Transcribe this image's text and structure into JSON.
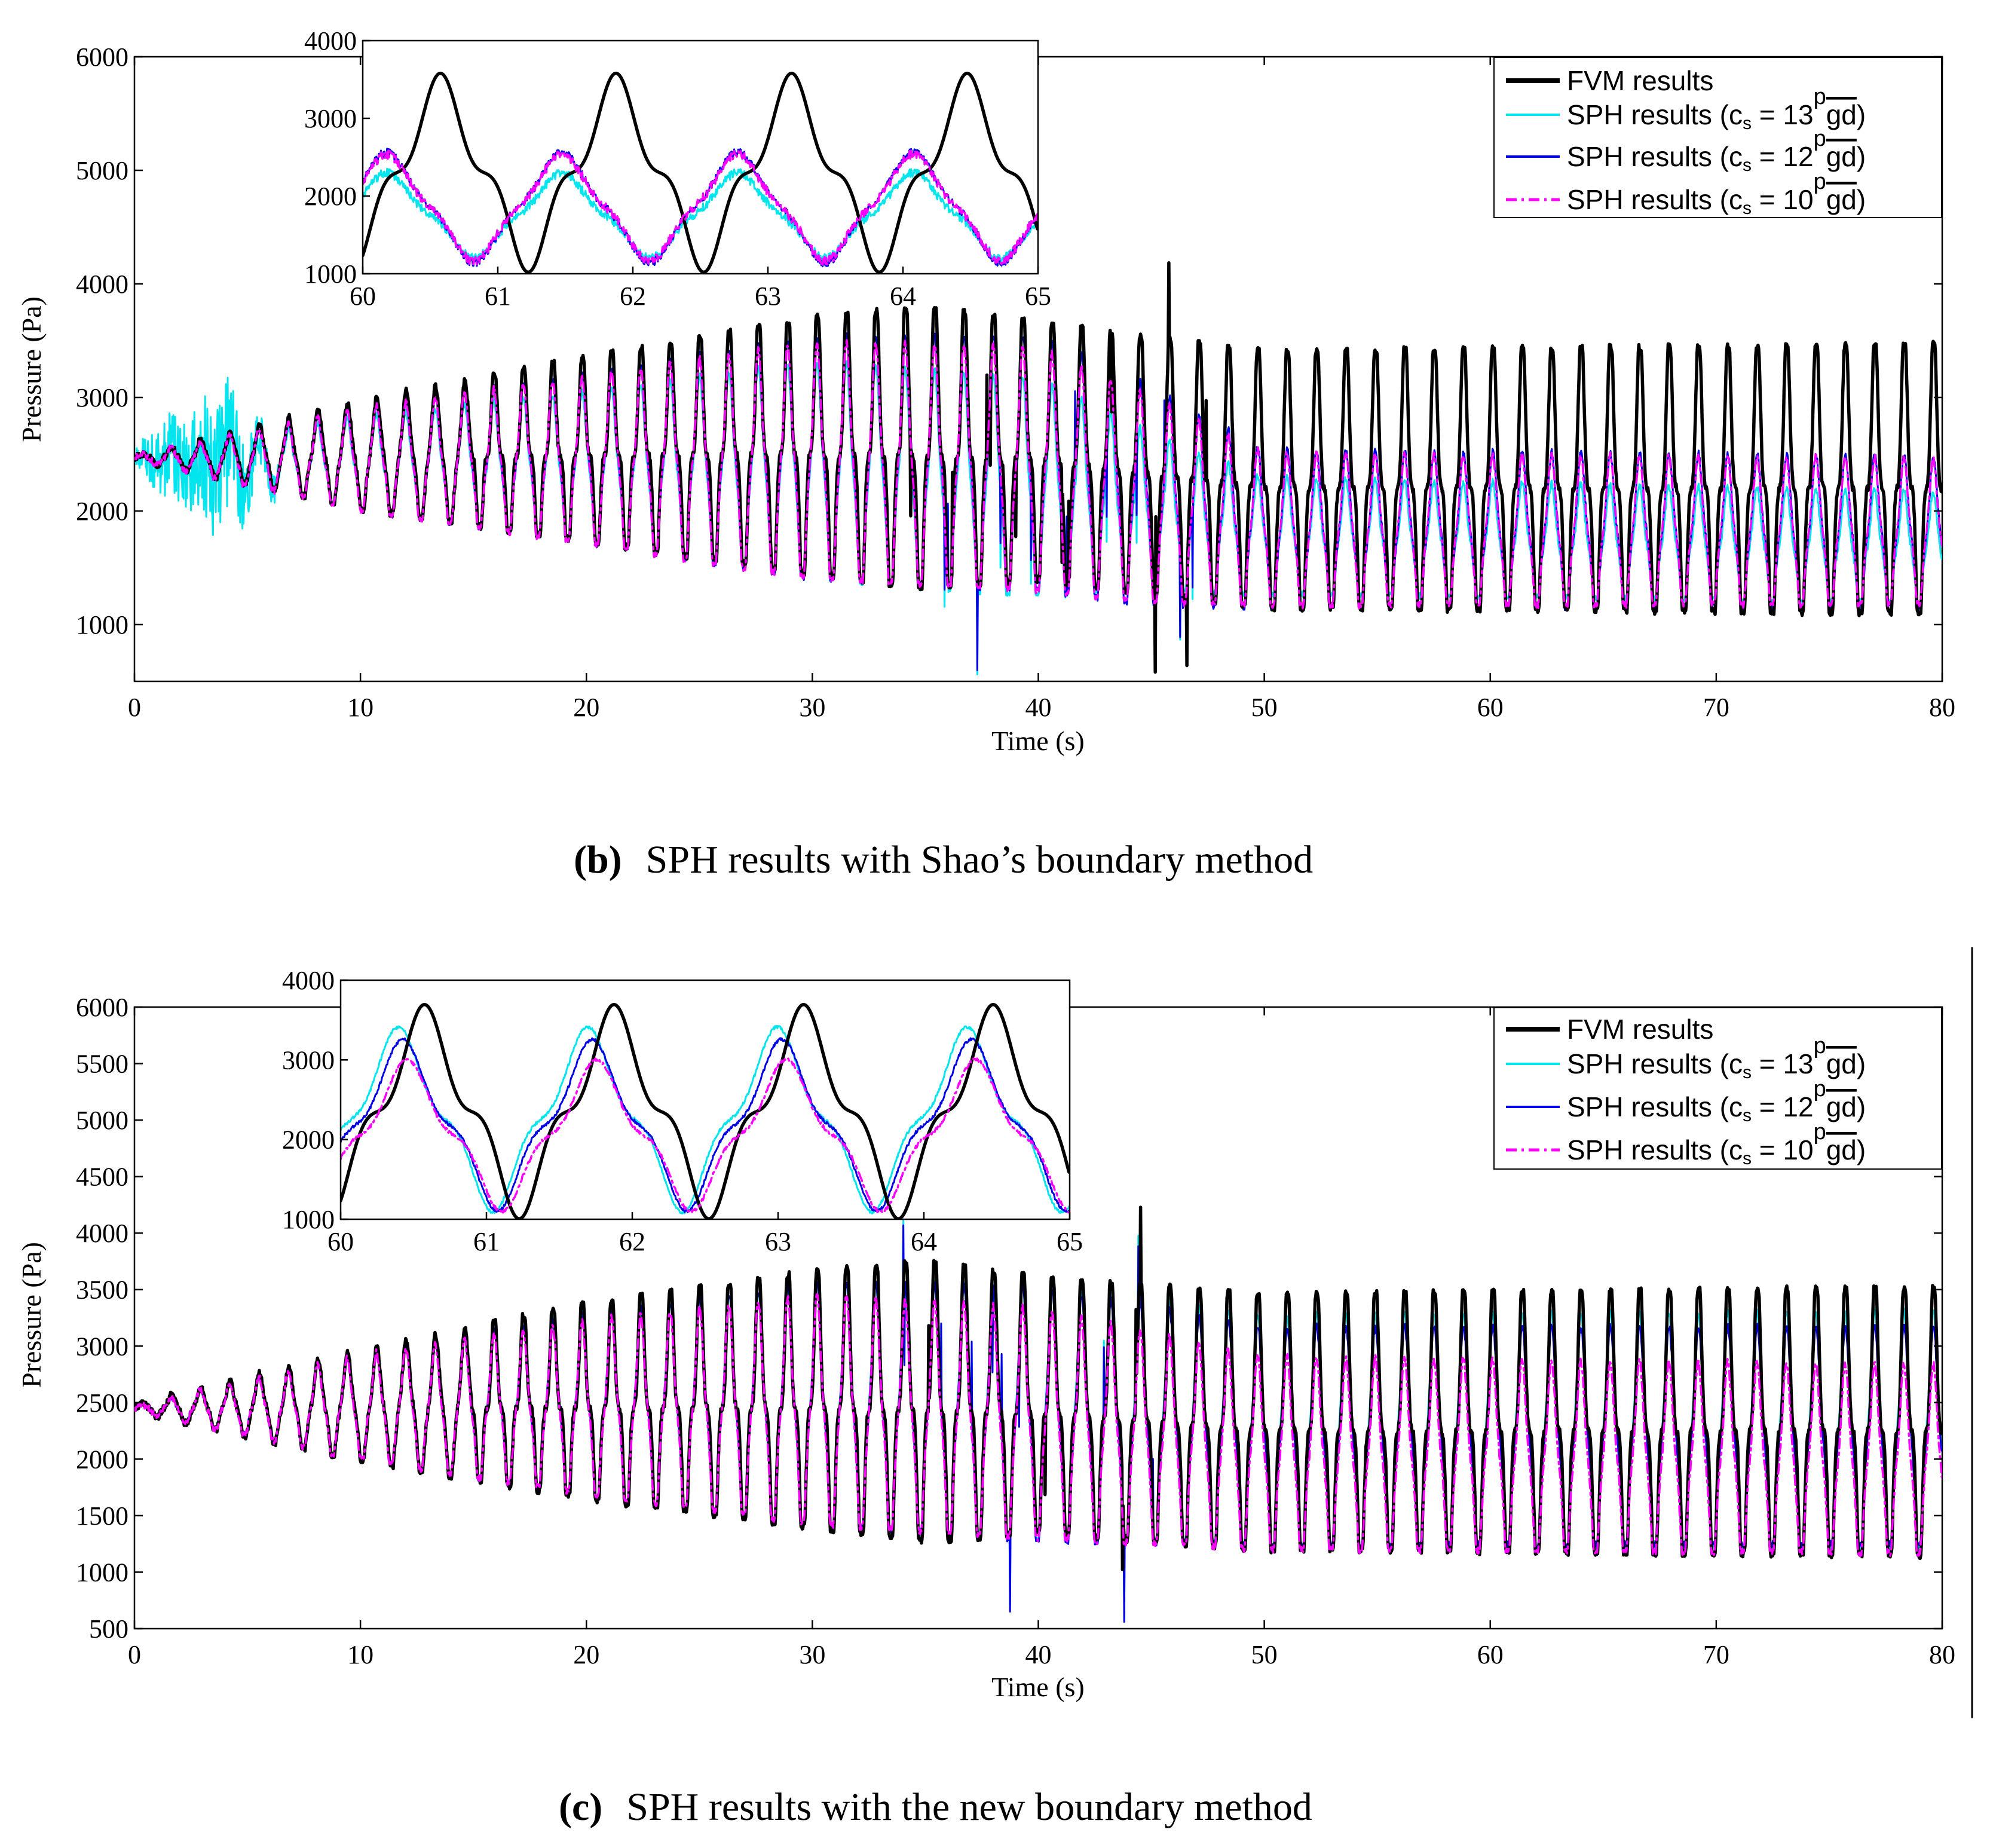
{
  "colors": {
    "fvm": "#000000",
    "sph13": "#00e5ee",
    "sph12": "#0000e6",
    "sph10": "#ff00ff"
  },
  "legend": {
    "fvm": "FVM results",
    "sph_prefix": "SPH results (c",
    "sph_sub": "s",
    "eq": " = ",
    "c13": "13",
    "c12": "12",
    "c10": "10",
    "sqrt_p": "p",
    "gd": "gd",
    "close": ")"
  },
  "captions": {
    "b_label": "(b)",
    "b_text": "SPH results with Shao’s boundary method",
    "c_label": "(c)",
    "c_text": "SPH results with the new boundary method"
  },
  "chart_data": [
    {
      "id": "panel-b",
      "type": "line",
      "xlabel": "Time (s)",
      "ylabel": "Pressure (Pa)",
      "xlim": [
        0,
        80
      ],
      "ylim": [
        500,
        6000
      ],
      "xticks": [
        "0",
        "10",
        "20",
        "30",
        "40",
        "50",
        "60",
        "70",
        "80"
      ],
      "yticks": [
        "1000",
        "2000",
        "3000",
        "4000",
        "5000",
        "6000"
      ],
      "ytick_values": [
        1000,
        2000,
        3000,
        4000,
        5000,
        6000
      ],
      "legend_position": "top-right",
      "series": [
        {
          "name": "FVM results",
          "key": "fvm",
          "mean": [
            [
              0,
              2470
            ],
            [
              10,
              2470
            ],
            [
              30,
              2500
            ],
            [
              40,
              2450
            ],
            [
              50,
              2200
            ],
            [
              80,
              2200
            ]
          ],
          "amp": [
            [
              0,
              20
            ],
            [
              2,
              100
            ],
            [
              10,
              450
            ],
            [
              20,
              750
            ],
            [
              30,
              1050
            ],
            [
              35,
              1150
            ],
            [
              40,
              1050
            ],
            [
              45,
              1050
            ],
            [
              50,
              1050
            ],
            [
              80,
              1100
            ]
          ]
        },
        {
          "name": "SPH results (c_s = 13√gd)",
          "key": "sph13",
          "mean": [
            [
              0,
              2470
            ],
            [
              10,
              2400
            ],
            [
              30,
              2300
            ],
            [
              40,
              2150
            ],
            [
              50,
              1750
            ],
            [
              80,
              1650
            ]
          ],
          "amp": [
            [
              0,
              20
            ],
            [
              2,
              100
            ],
            [
              10,
              380
            ],
            [
              20,
              620
            ],
            [
              30,
              900
            ],
            [
              40,
              900
            ],
            [
              45,
              650
            ],
            [
              50,
              480
            ],
            [
              80,
              460
            ]
          ],
          "noise": [
            [
              0,
              150
            ],
            [
              1,
              600
            ],
            [
              3,
              1100
            ],
            [
              4,
              1200
            ],
            [
              6,
              300
            ],
            [
              7,
              60
            ],
            [
              80,
              60
            ]
          ]
        },
        {
          "name": "SPH results (c_s = 12√gd)",
          "key": "sph12",
          "mean": [
            [
              0,
              2470
            ],
            [
              10,
              2430
            ],
            [
              30,
              2400
            ],
            [
              40,
              2350
            ],
            [
              50,
              1800
            ],
            [
              80,
              1780
            ]
          ],
          "amp": [
            [
              0,
              20
            ],
            [
              2,
              100
            ],
            [
              10,
              420
            ],
            [
              20,
              700
            ],
            [
              30,
              1000
            ],
            [
              40,
              1050
            ],
            [
              45,
              900
            ],
            [
              50,
              650
            ],
            [
              80,
              620
            ]
          ]
        },
        {
          "name": "SPH results (c_s = 10√gd)",
          "key": "sph10",
          "mean": [
            [
              0,
              2470
            ],
            [
              10,
              2430
            ],
            [
              30,
              2380
            ],
            [
              40,
              2300
            ],
            [
              50,
              1800
            ],
            [
              80,
              1780
            ]
          ],
          "amp": [
            [
              0,
              20
            ],
            [
              2,
              100
            ],
            [
              10,
              420
            ],
            [
              20,
              690
            ],
            [
              30,
              980
            ],
            [
              40,
              1000
            ],
            [
              45,
              850
            ],
            [
              50,
              630
            ],
            [
              80,
              600
            ]
          ]
        }
      ],
      "inset": {
        "xlim": [
          60,
          65
        ],
        "ylim": [
          1000,
          4000
        ],
        "xticks": [
          "60",
          "61",
          "62",
          "63",
          "64",
          "65"
        ],
        "yticks": [
          "1000",
          "2000",
          "3000",
          "4000"
        ],
        "ytick_values": [
          1000,
          2000,
          3000,
          4000
        ]
      }
    },
    {
      "id": "panel-c",
      "type": "line",
      "xlabel": "Time (s)",
      "ylabel": "Pressure (Pa)",
      "xlim": [
        0,
        80
      ],
      "ylim": [
        500,
        6000
      ],
      "xticks": [
        "0",
        "10",
        "20",
        "30",
        "40",
        "50",
        "60",
        "70",
        "80"
      ],
      "yticks": [
        "500",
        "1000",
        "1500",
        "2000",
        "2500",
        "3000",
        "3500",
        "4000",
        "4500",
        "5000",
        "5500",
        "6000"
      ],
      "ytick_values": [
        500,
        1000,
        1500,
        2000,
        2500,
        3000,
        3500,
        4000,
        4500,
        5000,
        5500,
        6000
      ],
      "legend_position": "top-right",
      "series": [
        {
          "name": "FVM results",
          "key": "fvm",
          "mean": [
            [
              0,
              2450
            ],
            [
              10,
              2450
            ],
            [
              30,
              2450
            ],
            [
              40,
              2400
            ],
            [
              50,
              2250
            ],
            [
              80,
              2250
            ]
          ],
          "amp": [
            [
              0,
              20
            ],
            [
              2,
              120
            ],
            [
              10,
              460
            ],
            [
              20,
              800
            ],
            [
              30,
              1050
            ],
            [
              35,
              1150
            ],
            [
              40,
              1050
            ],
            [
              50,
              1050
            ],
            [
              80,
              1100
            ]
          ]
        },
        {
          "name": "SPH results (c_s = 13√gd)",
          "key": "sph13",
          "mean": [
            [
              0,
              2450
            ],
            [
              10,
              2440
            ],
            [
              30,
              2420
            ],
            [
              40,
              2350
            ],
            [
              50,
              2200
            ],
            [
              80,
              2200
            ]
          ],
          "amp": [
            [
              0,
              20
            ],
            [
              2,
              110
            ],
            [
              10,
              440
            ],
            [
              20,
              760
            ],
            [
              30,
              1000
            ],
            [
              40,
              1050
            ],
            [
              50,
              950
            ],
            [
              80,
              980
            ]
          ]
        },
        {
          "name": "SPH results (c_s = 12√gd)",
          "key": "sph12",
          "mean": [
            [
              0,
              2450
            ],
            [
              10,
              2440
            ],
            [
              30,
              2420
            ],
            [
              40,
              2330
            ],
            [
              50,
              2150
            ],
            [
              80,
              2150
            ]
          ],
          "amp": [
            [
              0,
              20
            ],
            [
              2,
              110
            ],
            [
              10,
              440
            ],
            [
              20,
              750
            ],
            [
              30,
              1000
            ],
            [
              40,
              1050
            ],
            [
              50,
              900
            ],
            [
              80,
              900
            ]
          ]
        },
        {
          "name": "SPH results (c_s = 10√gd)",
          "key": "sph10",
          "mean": [
            [
              0,
              2450
            ],
            [
              10,
              2430
            ],
            [
              30,
              2380
            ],
            [
              40,
              2250
            ],
            [
              50,
              2000
            ],
            [
              80,
              1950
            ]
          ],
          "amp": [
            [
              0,
              20
            ],
            [
              2,
              110
            ],
            [
              10,
              430
            ],
            [
              20,
              720
            ],
            [
              30,
              950
            ],
            [
              40,
              950
            ],
            [
              50,
              800
            ],
            [
              80,
              780
            ]
          ]
        }
      ],
      "inset": {
        "xlim": [
          60,
          65
        ],
        "ylim": [
          1000,
          4000
        ],
        "xticks": [
          "60",
          "61",
          "62",
          "63",
          "64",
          "65"
        ],
        "yticks": [
          "1000",
          "2000",
          "3000",
          "4000"
        ],
        "ytick_values": [
          1000,
          2000,
          3000,
          4000
        ]
      }
    }
  ]
}
